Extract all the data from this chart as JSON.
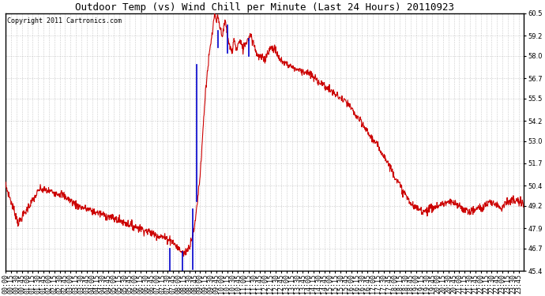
{
  "title": "Outdoor Temp (vs) Wind Chill per Minute (Last 24 Hours) 20110923",
  "copyright": "Copyright 2011 Cartronics.com",
  "ylim": [
    45.4,
    60.5
  ],
  "yticks": [
    45.4,
    46.7,
    47.9,
    49.2,
    50.4,
    51.7,
    53.0,
    54.2,
    55.5,
    56.7,
    58.0,
    59.2,
    60.5
  ],
  "bg_color": "#ffffff",
  "grid_color": "#aaaaaa",
  "line_color_red": "#cc0000",
  "line_color_blue": "#0000cc",
  "title_fontsize": 9,
  "copyright_fontsize": 6,
  "tick_fontsize": 6
}
